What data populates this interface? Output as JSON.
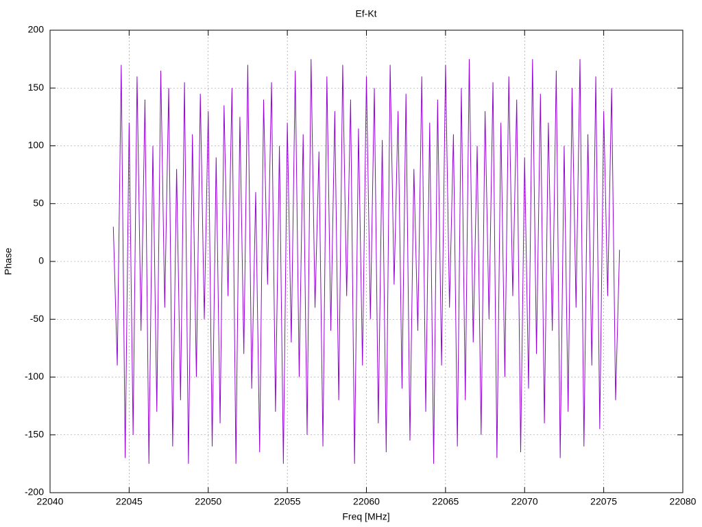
{
  "chart_data": {
    "type": "line",
    "title": "Ef-Kt",
    "xlabel": "Freq [MHz]",
    "ylabel": "Phase",
    "xlim": [
      22040,
      22080
    ],
    "xticks": [
      22040,
      22045,
      22050,
      22055,
      22060,
      22065,
      22070,
      22075,
      22080
    ],
    "ylim": [
      -200,
      200
    ],
    "yticks": [
      -200,
      -150,
      -100,
      -50,
      0,
      50,
      100,
      150,
      200
    ],
    "grid": true,
    "series": [
      {
        "color": "#9400d3",
        "x": [
          22044,
          22044.25,
          22044.5,
          22044.75,
          22045,
          22045.25,
          22045.5,
          22045.75,
          22046,
          22046.25,
          22046.5,
          22046.75,
          22047,
          22047.25,
          22047.5,
          22047.75,
          22048,
          22048.25,
          22048.5,
          22048.75,
          22049,
          22049.25,
          22049.5,
          22049.75,
          22050,
          22050.25,
          22050.5,
          22050.75,
          22051,
          22051.25,
          22051.5,
          22051.75,
          22052,
          22052.25,
          22052.5,
          22052.75,
          22053,
          22053.25,
          22053.5,
          22053.75,
          22054,
          22054.25,
          22054.5,
          22054.75,
          22055,
          22055.25,
          22055.5,
          22055.75,
          22056,
          22056.25,
          22056.5,
          22056.75,
          22057,
          22057.25,
          22057.5,
          22057.75,
          22058,
          22058.25,
          22058.5,
          22058.75,
          22059,
          22059.25,
          22059.5,
          22059.75,
          22060,
          22060.25,
          22060.5,
          22060.75,
          22061,
          22061.25,
          22061.5,
          22061.75,
          22062,
          22062.25,
          22062.5,
          22062.75,
          22063,
          22063.25,
          22063.5,
          22063.75,
          22064,
          22064.25,
          22064.5,
          22064.75,
          22065,
          22065.25,
          22065.5,
          22065.75,
          22066,
          22066.25,
          22066.5,
          22066.75,
          22067,
          22067.25,
          22067.5,
          22067.75,
          22068,
          22068.25,
          22068.5,
          22068.75,
          22069,
          22069.25,
          22069.5,
          22069.75,
          22070,
          22070.25,
          22070.5,
          22070.75,
          22071,
          22071.25,
          22071.5,
          22071.75,
          22072,
          22072.25,
          22072.5,
          22072.75,
          22073,
          22073.25,
          22073.5,
          22073.75,
          22074,
          22074.25,
          22074.5,
          22074.75,
          22075,
          22075.25,
          22075.5,
          22075.75,
          22076
        ],
        "values": [
          30,
          -90,
          170,
          -170,
          120,
          -150,
          160,
          -60,
          140,
          -175,
          100,
          -130,
          165,
          -40,
          150,
          -160,
          80,
          -120,
          155,
          -175,
          110,
          -100,
          145,
          -50,
          130,
          -160,
          90,
          -140,
          135,
          -30,
          150,
          -175,
          125,
          -80,
          170,
          -110,
          60,
          -165,
          140,
          -20,
          155,
          -130,
          100,
          -175,
          120,
          -70,
          165,
          -100,
          110,
          -150,
          175,
          -40,
          95,
          -160,
          160,
          -60,
          130,
          -120,
          170,
          -30,
          140,
          -175,
          115,
          -90,
          160,
          -50,
          150,
          -140,
          105,
          -165,
          170,
          -20,
          130,
          -110,
          145,
          -155,
          80,
          -60,
          160,
          -130,
          120,
          -175,
          140,
          -90,
          170,
          -40,
          110,
          -160,
          150,
          -120,
          175,
          -70,
          100,
          -150,
          130,
          -50,
          155,
          -170,
          120,
          -100,
          160,
          -30,
          140,
          -165,
          90,
          -110,
          175,
          -80,
          145,
          -140,
          120,
          -60,
          165,
          -170,
          100,
          -130,
          150,
          -40,
          175,
          -160,
          110,
          -90,
          160,
          -145,
          130,
          -30,
          150,
          -120,
          10
        ]
      }
    ]
  }
}
